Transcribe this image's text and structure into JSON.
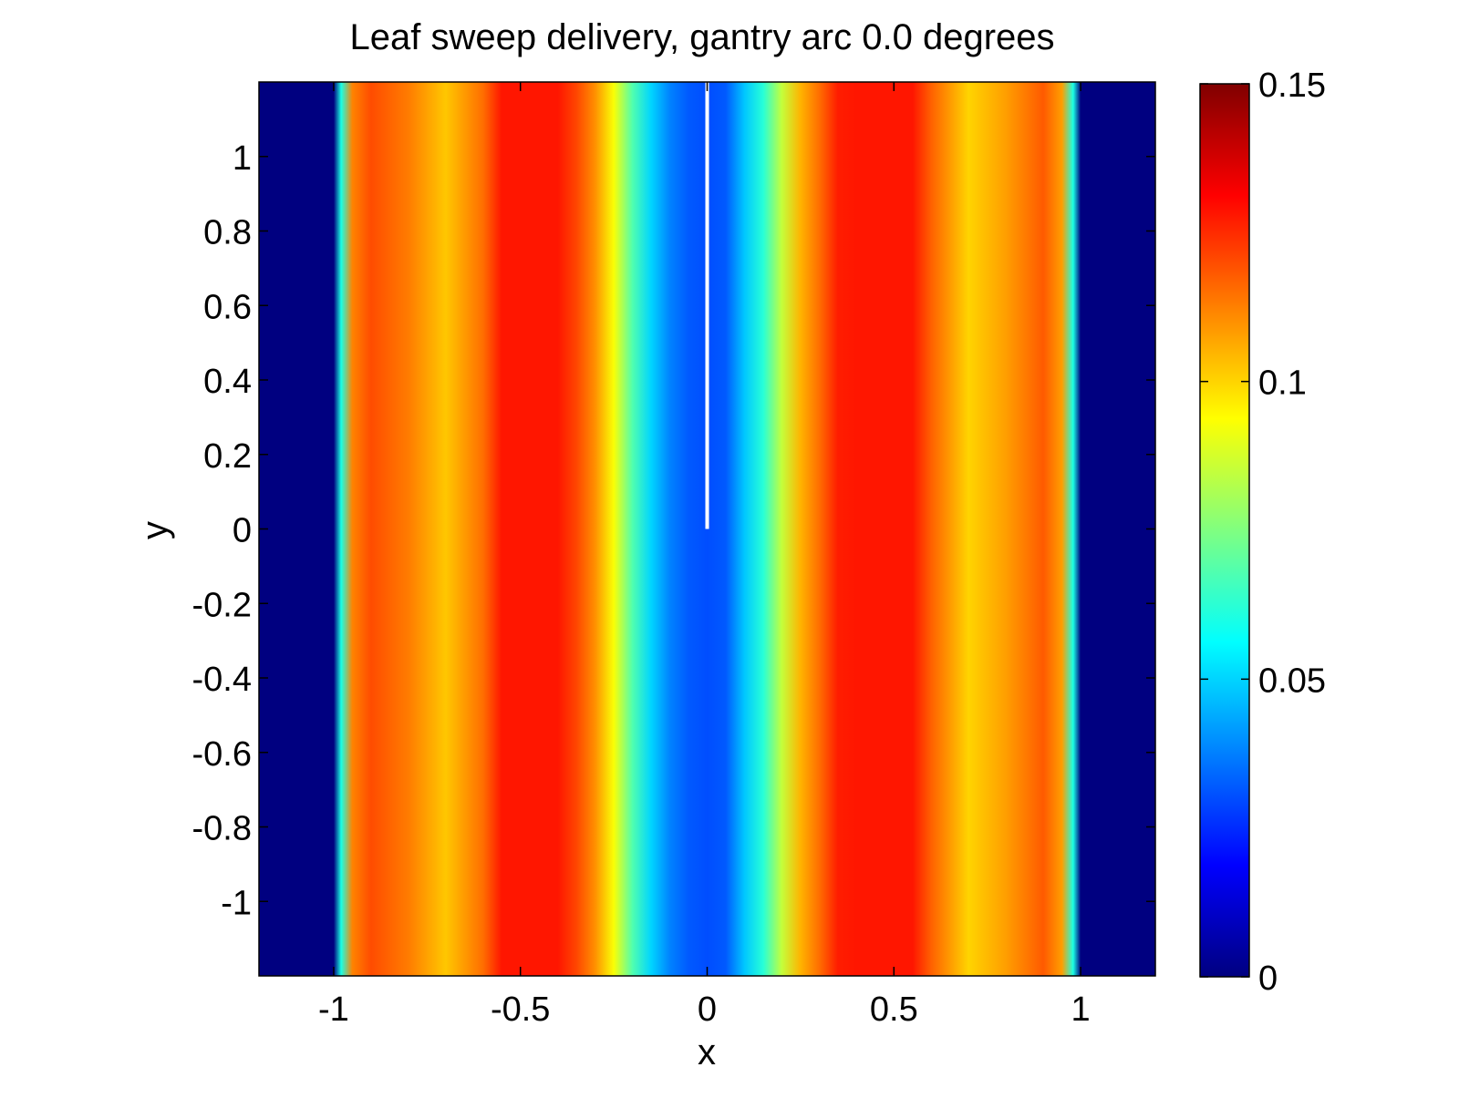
{
  "chart_data": {
    "type": "heatmap",
    "title": "Leaf sweep delivery, gantry arc 0.0 degrees",
    "xlabel": "x",
    "ylabel": "y",
    "xlim": [
      -1.2,
      1.2
    ],
    "ylim": [
      -1.2,
      1.2
    ],
    "xticks": [
      -1,
      -0.5,
      0,
      0.5,
      1
    ],
    "xtick_labels": [
      "-1",
      "-0.5",
      "0",
      "0.5",
      "1"
    ],
    "yticks": [
      1,
      0.8,
      0.6,
      0.4,
      0.2,
      0,
      -0.2,
      -0.4,
      -0.6,
      -0.8,
      -1
    ],
    "ytick_labels": [
      "1",
      "0.8",
      "0.6",
      "0.4",
      "0.2",
      "0",
      "-0.2",
      "-0.4",
      "-0.6",
      "-0.8",
      "-1"
    ],
    "colormap": "jet",
    "clim": [
      0,
      0.15
    ],
    "colorbar_ticks": [
      0,
      0.05,
      0.1,
      0.15
    ],
    "colorbar_tick_labels": [
      "0",
      "0.05",
      "0.1",
      "0.15"
    ],
    "profile_x": [
      -1.2,
      -1.0,
      -0.98,
      -0.95,
      -0.9,
      -0.8,
      -0.7,
      -0.6,
      -0.55,
      -0.45,
      -0.4,
      -0.35,
      -0.3,
      -0.25,
      -0.2,
      -0.15,
      -0.1,
      -0.05,
      0,
      0.05,
      0.1,
      0.15,
      0.2,
      0.25,
      0.3,
      0.35,
      0.4,
      0.45,
      0.55,
      0.6,
      0.7,
      0.8,
      0.9,
      0.95,
      0.98,
      1.0,
      1.2
    ],
    "profile_values": [
      0,
      0,
      0.06,
      0.112,
      0.12,
      0.113,
      0.102,
      0.115,
      0.128,
      0.128,
      0.128,
      0.121,
      0.11,
      0.093,
      0.068,
      0.05,
      0.038,
      0.032,
      0.03,
      0.032,
      0.048,
      0.062,
      0.085,
      0.105,
      0.115,
      0.127,
      0.128,
      0.128,
      0.128,
      0.117,
      0.1,
      0.108,
      0.118,
      0.108,
      0.06,
      0,
      0
    ],
    "white_line": {
      "x": 0,
      "y_from": 0,
      "y_to": 1.2
    }
  }
}
